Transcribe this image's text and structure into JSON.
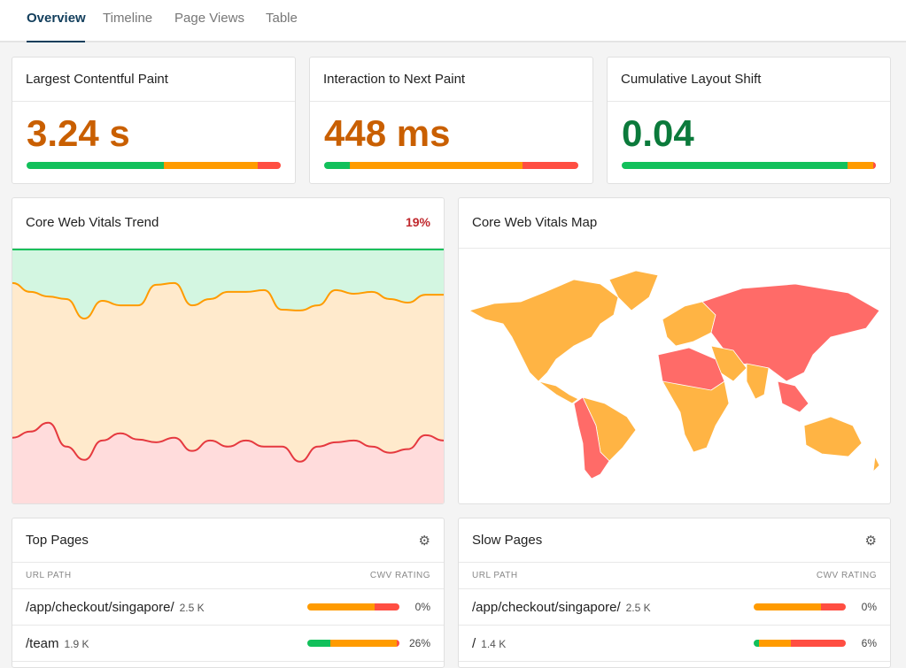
{
  "tabs": [
    {
      "label": "Overview",
      "active": true
    },
    {
      "label": "Timeline"
    },
    {
      "label": "Page Views"
    },
    {
      "label": "Table"
    }
  ],
  "colors": {
    "good": "#12c05b",
    "needs_improvement": "#ff9b00",
    "poor": "#ff4e42",
    "value_orange": "#c95f00",
    "value_green": "#0b7a3b",
    "map_orange": "#ffb444",
    "map_red": "#ff6b68"
  },
  "metrics": [
    {
      "title": "Largest Contentful Paint",
      "value": "3.24 s",
      "status": "needs_improvement",
      "distribution": [
        54,
        37,
        9
      ]
    },
    {
      "title": "Interaction to Next Paint",
      "value": "448 ms",
      "status": "needs_improvement",
      "distribution": [
        10,
        68,
        22
      ]
    },
    {
      "title": "Cumulative Layout Shift",
      "value": "0.04",
      "status": "good",
      "distribution": [
        89,
        10,
        1
      ]
    }
  ],
  "trend": {
    "title": "Core Web Vitals Trend",
    "badge": "19%"
  },
  "chart_data": {
    "type": "area",
    "stacked": true,
    "ylim": [
      0,
      100
    ],
    "grid": false,
    "series": [
      {
        "key": "good",
        "values": [
          13.2,
          16.7,
          18.5,
          19.5,
          27.2,
          20.2,
          22.0,
          22.0,
          13.9,
          13.2,
          22.0,
          19.5,
          16.7,
          16.7,
          16.0,
          23.7,
          24.0,
          22.0,
          16.0,
          17.4,
          16.7,
          19.5,
          20.9,
          17.8,
          17.8
        ]
      },
      {
        "key": "poor",
        "values": [
          25.8,
          28.2,
          31.7,
          22.3,
          17.1,
          24.7,
          27.5,
          25.1,
          24.0,
          25.8,
          20.6,
          24.7,
          22.3,
          24.7,
          22.3,
          22.3,
          16.4,
          22.3,
          24.0,
          24.7,
          22.3,
          19.9,
          21.3,
          26.8,
          24.7
        ]
      }
    ]
  },
  "map": {
    "title": "Core Web Vitals Map"
  },
  "top_pages": {
    "title": "Top Pages",
    "col_url": "URL PATH",
    "col_rating": "CWV RATING",
    "icon": "gear-icon",
    "rows": [
      {
        "path": "/app/checkout/singapore/",
        "count": "2.5 K",
        "pct": "0%",
        "distribution": [
          0,
          73,
          27
        ]
      },
      {
        "path": "/team",
        "count": "1.9 K",
        "pct": "26%",
        "distribution": [
          25,
          72,
          3
        ]
      }
    ]
  },
  "slow_pages": {
    "title": "Slow Pages",
    "col_url": "URL PATH",
    "col_rating": "CWV RATING",
    "icon": "gear-icon",
    "rows": [
      {
        "path": "/app/checkout/singapore/",
        "count": "2.5 K",
        "pct": "0%",
        "distribution": [
          0,
          73,
          27
        ]
      },
      {
        "path": "/",
        "count": "1.4 K",
        "pct": "6%",
        "distribution": [
          6,
          34,
          60
        ]
      }
    ]
  }
}
